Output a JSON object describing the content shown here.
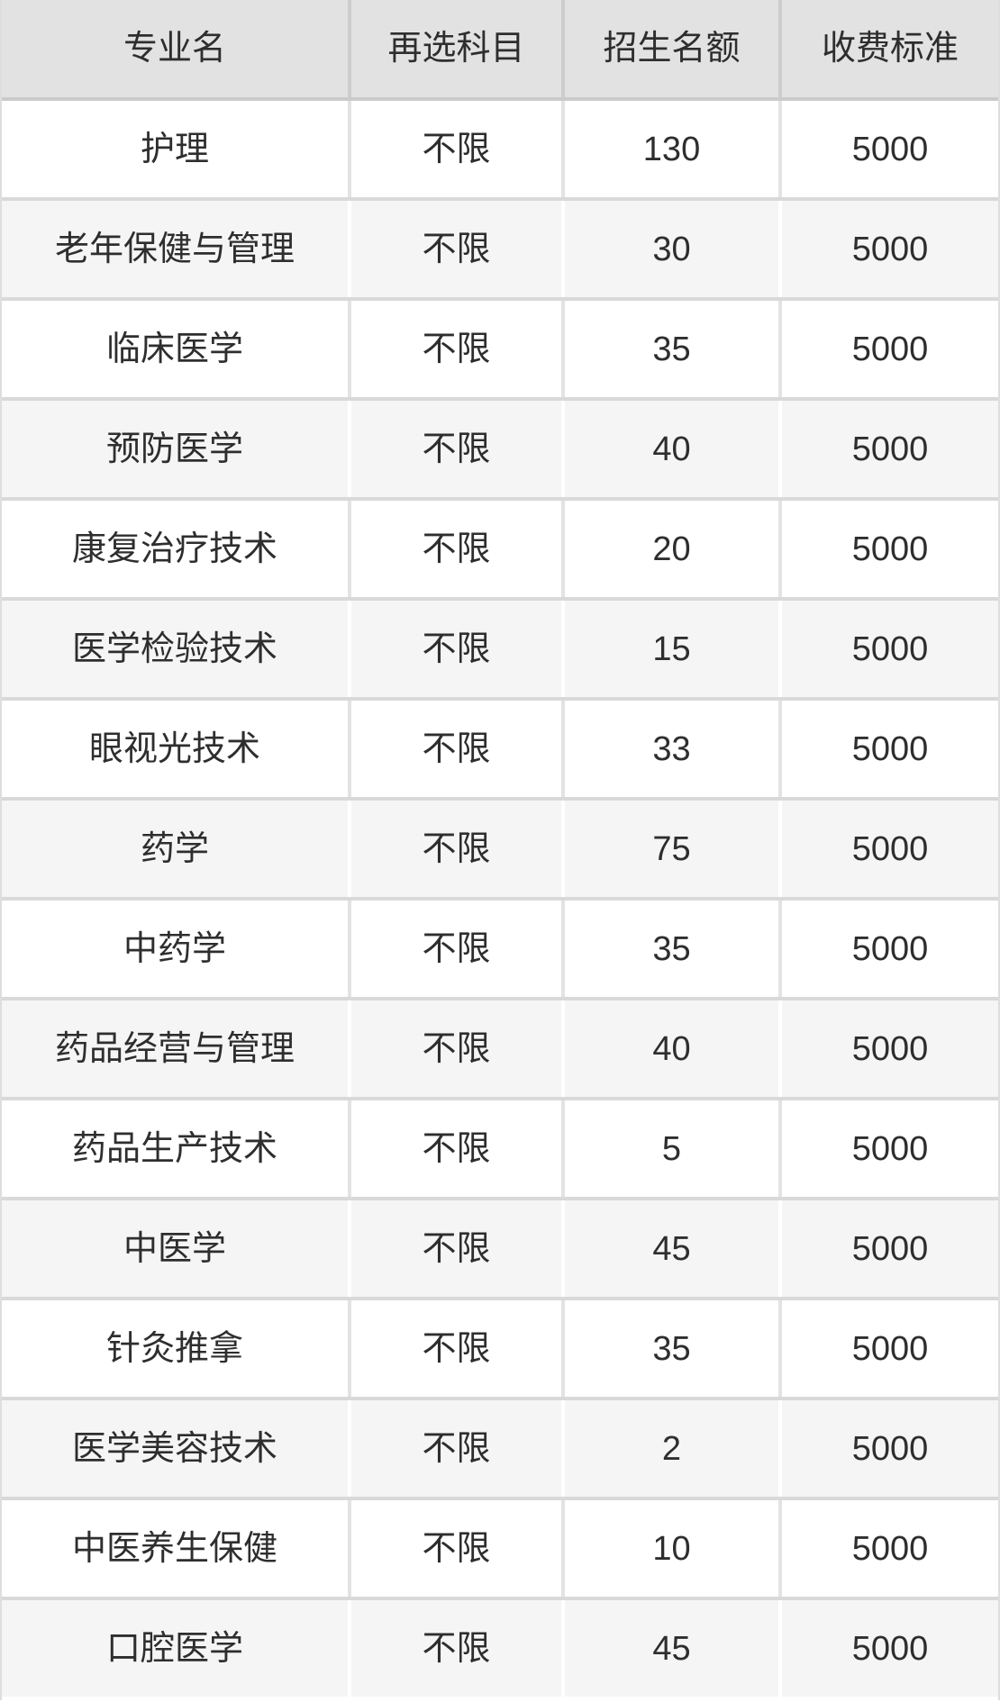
{
  "table": {
    "columns": [
      {
        "label": "专业名"
      },
      {
        "label": "再选科目"
      },
      {
        "label": "招生名额"
      },
      {
        "label": "收费标准"
      }
    ],
    "rows": [
      {
        "major": "护理",
        "subject": "不限",
        "quota": "130",
        "fee": "5000"
      },
      {
        "major": "老年保健与管理",
        "subject": "不限",
        "quota": "30",
        "fee": "5000"
      },
      {
        "major": "临床医学",
        "subject": "不限",
        "quota": "35",
        "fee": "5000"
      },
      {
        "major": "预防医学",
        "subject": "不限",
        "quota": "40",
        "fee": "5000"
      },
      {
        "major": "康复治疗技术",
        "subject": "不限",
        "quota": "20",
        "fee": "5000"
      },
      {
        "major": "医学检验技术",
        "subject": "不限",
        "quota": "15",
        "fee": "5000"
      },
      {
        "major": "眼视光技术",
        "subject": "不限",
        "quota": "33",
        "fee": "5000"
      },
      {
        "major": "药学",
        "subject": "不限",
        "quota": "75",
        "fee": "5000"
      },
      {
        "major": "中药学",
        "subject": "不限",
        "quota": "35",
        "fee": "5000"
      },
      {
        "major": "药品经营与管理",
        "subject": "不限",
        "quota": "40",
        "fee": "5000"
      },
      {
        "major": "药品生产技术",
        "subject": "不限",
        "quota": "5",
        "fee": "5000"
      },
      {
        "major": "中医学",
        "subject": "不限",
        "quota": "45",
        "fee": "5000"
      },
      {
        "major": "针灸推拿",
        "subject": "不限",
        "quota": "35",
        "fee": "5000"
      },
      {
        "major": "医学美容技术",
        "subject": "不限",
        "quota": "2",
        "fee": "5000"
      },
      {
        "major": "中医养生保健",
        "subject": "不限",
        "quota": "10",
        "fee": "5000"
      },
      {
        "major": "口腔医学",
        "subject": "不限",
        "quota": "45",
        "fee": "5000"
      }
    ]
  },
  "colors": {
    "header_bg": "#e2e2e2",
    "alt_row_bg": "#f5f5f5",
    "row_bg": "#ffffff",
    "text": "#2e2e2e",
    "grid_line": "#d9d9d9"
  },
  "chart_data": {
    "type": "table",
    "columns": [
      "专业名",
      "再选科目",
      "招生名额",
      "收费标准"
    ],
    "rows": [
      [
        "护理",
        "不限",
        130,
        5000
      ],
      [
        "老年保健与管理",
        "不限",
        30,
        5000
      ],
      [
        "临床医学",
        "不限",
        35,
        5000
      ],
      [
        "预防医学",
        "不限",
        40,
        5000
      ],
      [
        "康复治疗技术",
        "不限",
        20,
        5000
      ],
      [
        "医学检验技术",
        "不限",
        15,
        5000
      ],
      [
        "眼视光技术",
        "不限",
        33,
        5000
      ],
      [
        "药学",
        "不限",
        75,
        5000
      ],
      [
        "中药学",
        "不限",
        35,
        5000
      ],
      [
        "药品经营与管理",
        "不限",
        40,
        5000
      ],
      [
        "药品生产技术",
        "不限",
        5,
        5000
      ],
      [
        "中医学",
        "不限",
        45,
        5000
      ],
      [
        "针灸推拿",
        "不限",
        35,
        5000
      ],
      [
        "医学美容技术",
        "不限",
        2,
        5000
      ],
      [
        "中医养生保健",
        "不限",
        10,
        5000
      ],
      [
        "口腔医学",
        "不限",
        45,
        5000
      ]
    ],
    "zebra_striping": true,
    "grid": true
  }
}
